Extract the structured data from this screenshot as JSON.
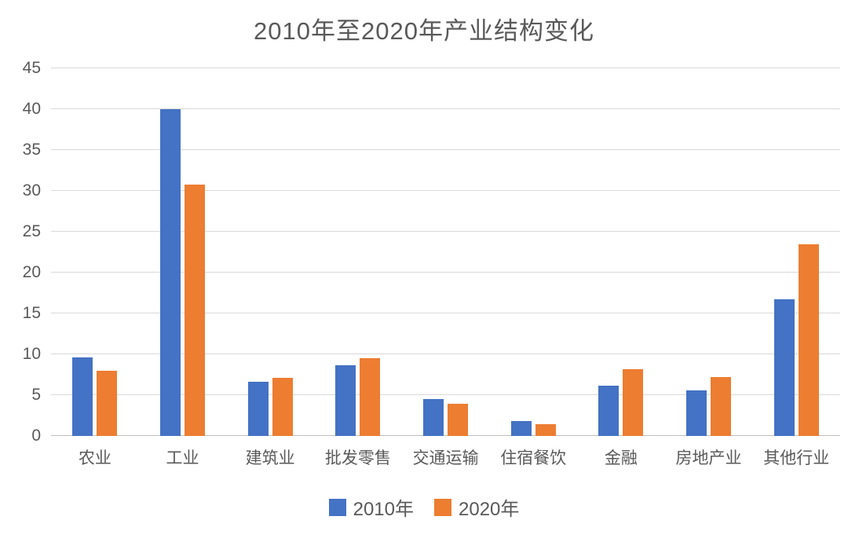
{
  "chart_data": {
    "type": "bar",
    "title": "2010年至2020年产业结构变化",
    "categories": [
      "农业",
      "工业",
      "建筑业",
      "批发零售",
      "交通运输",
      "住宿餐饮",
      "金融",
      "房地产业",
      "其他行业"
    ],
    "series": [
      {
        "name": "2010年",
        "color": "#4472C4",
        "values": [
          9.6,
          40.0,
          6.6,
          8.7,
          4.5,
          1.8,
          6.2,
          5.6,
          16.7
        ]
      },
      {
        "name": "2020年",
        "color": "#ED7D31",
        "values": [
          8.0,
          30.8,
          7.1,
          9.5,
          3.9,
          1.4,
          8.2,
          7.2,
          23.5
        ]
      }
    ],
    "xlabel": "",
    "ylabel": "",
    "ylim": [
      0,
      45
    ],
    "yticks": [
      0,
      5,
      10,
      15,
      20,
      25,
      30,
      35,
      40,
      45
    ],
    "grid": true,
    "legend_position": "bottom"
  },
  "styles": {
    "grid_color": "#d9d9d9",
    "zero_line_color": "#bfbfbf",
    "text_color": "#595959",
    "background": "#ffffff"
  }
}
